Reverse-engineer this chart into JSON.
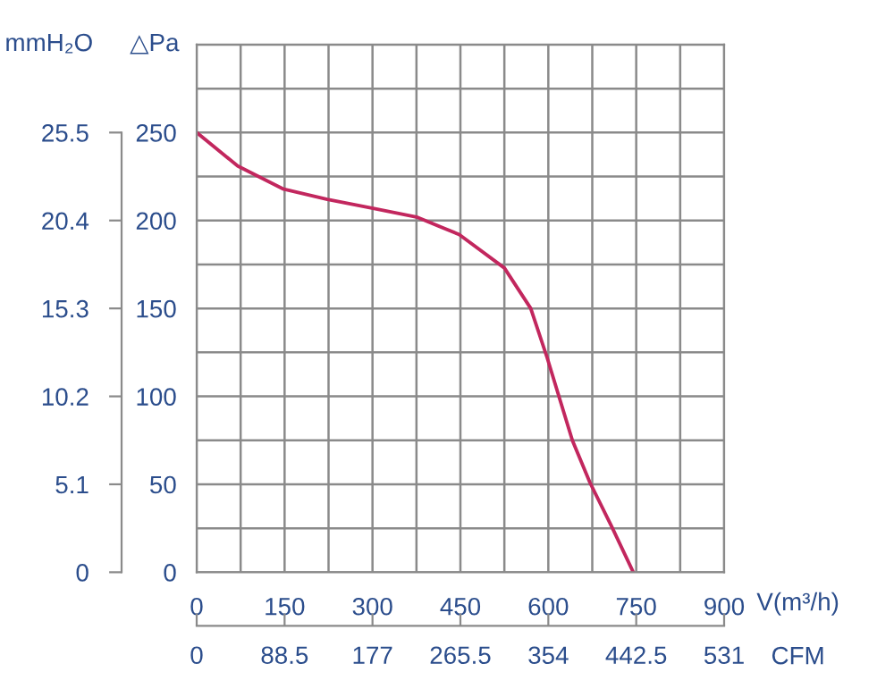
{
  "chart_data": {
    "type": "line",
    "xlabel": "V(m³/h)",
    "ylabel": "△Pa",
    "y2label": "mmH₂O",
    "x2label": "CFM",
    "x": [
      0,
      70,
      147,
      223,
      299,
      375,
      448,
      525,
      570,
      598,
      619,
      641,
      671,
      708,
      745
    ],
    "series": [
      {
        "color": "#c2275e",
        "values": [
          250,
          231,
          218,
          212,
          207,
          202,
          192,
          173,
          150,
          122,
          99,
          75,
          51,
          26,
          0
        ]
      }
    ],
    "xlim": [
      0,
      900
    ],
    "xticks": [
      0,
      {
        "value": 75,
        "label": null
      },
      150,
      {
        "value": 225,
        "label": null
      },
      300,
      {
        "value": 375,
        "label": null
      },
      450,
      {
        "value": 525,
        "label": null
      },
      600,
      {
        "value": 675,
        "label": null
      },
      750,
      {
        "value": 825,
        "label": null
      },
      900
    ],
    "ylim": [
      0,
      300
    ],
    "yticks": [
      0,
      {
        "value": 25,
        "label": null
      },
      50,
      {
        "value": 75,
        "label": null
      },
      100,
      {
        "value": 125,
        "label": null
      },
      150,
      {
        "value": 175,
        "label": null
      },
      200,
      {
        "value": 225,
        "label": null
      },
      250,
      {
        "value": 275,
        "label": null
      },
      {
        "value": 300,
        "label": null
      }
    ],
    "y2lim": [
      0,
      30.6
    ],
    "y2ticks": [
      0,
      5.1,
      10.2,
      15.3,
      20.4,
      25.5
    ],
    "x2lim": [
      0,
      531
    ],
    "x2ticks": [
      0,
      88.5,
      177,
      265.5,
      354,
      442.5,
      531
    ],
    "grid": true,
    "legend": false,
    "marker": "none",
    "line_style": "solid"
  }
}
